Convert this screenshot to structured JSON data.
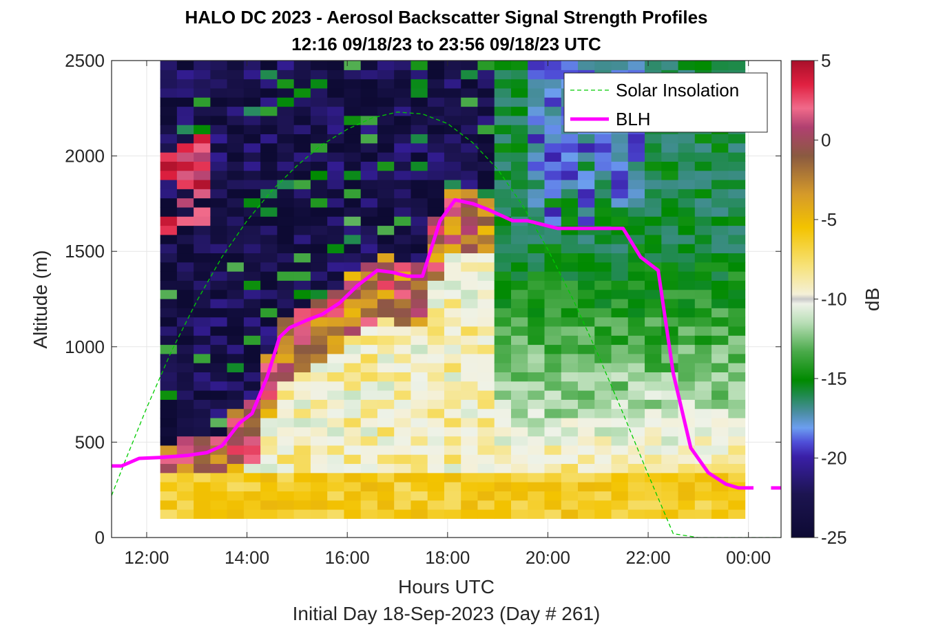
{
  "chart_data": {
    "type": "heatmap",
    "title": "HALO DC 2023 - Aerosol Backscatter Signal Strength Profiles",
    "subtitle": "12:16 09/18/23 to 23:56 09/18/23  UTC",
    "xlabel": "Hours UTC",
    "ylabel": "Altitude (m)",
    "footer": "Initial Day 18-Sep-2023 (Day # 261)",
    "colorbar_label": "dB",
    "xlim_hours": [
      11.3,
      24.65
    ],
    "ylim": [
      0,
      2500
    ],
    "x_tick_values": [
      12,
      14,
      16,
      18,
      20,
      22,
      24
    ],
    "x_tick_labels": [
      "12:00",
      "14:00",
      "16:00",
      "18:00",
      "20:00",
      "22:00",
      "00:00"
    ],
    "y_tick_values": [
      0,
      500,
      1000,
      1500,
      2000,
      2500
    ],
    "y_tick_labels": [
      "0",
      "500",
      "1000",
      "1500",
      "2000",
      "2500"
    ],
    "colorbar_range": [
      -25,
      5
    ],
    "colorbar_tick_values": [
      5,
      0,
      -5,
      -10,
      -15,
      -20,
      -25
    ],
    "colorbar_tick_labels": [
      "5",
      "0",
      "-5",
      "-10",
      "-15",
      "-20",
      "-25"
    ],
    "grid": true,
    "legend_position": "top-right",
    "heatmap_time_range_hours": [
      12.27,
      23.93
    ],
    "heatmap_altitude_range_m": [
      100,
      2500
    ],
    "series": [
      {
        "name": "Solar Insolation",
        "style": "dashed",
        "color": "#00cc00",
        "x": [
          11.3,
          11.6,
          12.0,
          12.5,
          13.0,
          13.5,
          14.0,
          14.5,
          15.0,
          15.5,
          16.0,
          16.5,
          17.0,
          17.5,
          18.0,
          18.5,
          19.0,
          19.5,
          20.0,
          20.5,
          21.0,
          21.5,
          22.0,
          22.5,
          23.0,
          23.3,
          23.5,
          24.0,
          24.65
        ],
        "y": [
          220,
          420,
          680,
          980,
          1240,
          1470,
          1660,
          1820,
          1950,
          2060,
          2140,
          2200,
          2230,
          2220,
          2170,
          2070,
          1930,
          1740,
          1510,
          1250,
          960,
          650,
          330,
          20,
          0,
          0,
          0,
          0,
          0
        ]
      },
      {
        "name": "BLH",
        "style": "solid",
        "color": "#ff00ff",
        "x": [
          11.3,
          11.5,
          11.85,
          12.3,
          12.8,
          13.2,
          13.5,
          13.85,
          14.1,
          14.4,
          14.65,
          14.85,
          15.2,
          15.5,
          15.85,
          16.2,
          16.6,
          16.9,
          17.2,
          17.5,
          17.85,
          18.15,
          18.5,
          18.8,
          19.3,
          19.6,
          20.2,
          20.8,
          21.5,
          21.85,
          22.2,
          22.5,
          22.85,
          23.2,
          23.55,
          23.8,
          24.1
        ],
        "y": [
          375,
          375,
          415,
          420,
          430,
          445,
          480,
          600,
          650,
          840,
          1050,
          1100,
          1140,
          1170,
          1230,
          1320,
          1400,
          1390,
          1370,
          1370,
          1660,
          1770,
          1750,
          1720,
          1660,
          1660,
          1620,
          1620,
          1620,
          1470,
          1400,
          860,
          470,
          340,
          280,
          260,
          260
        ]
      }
    ]
  }
}
